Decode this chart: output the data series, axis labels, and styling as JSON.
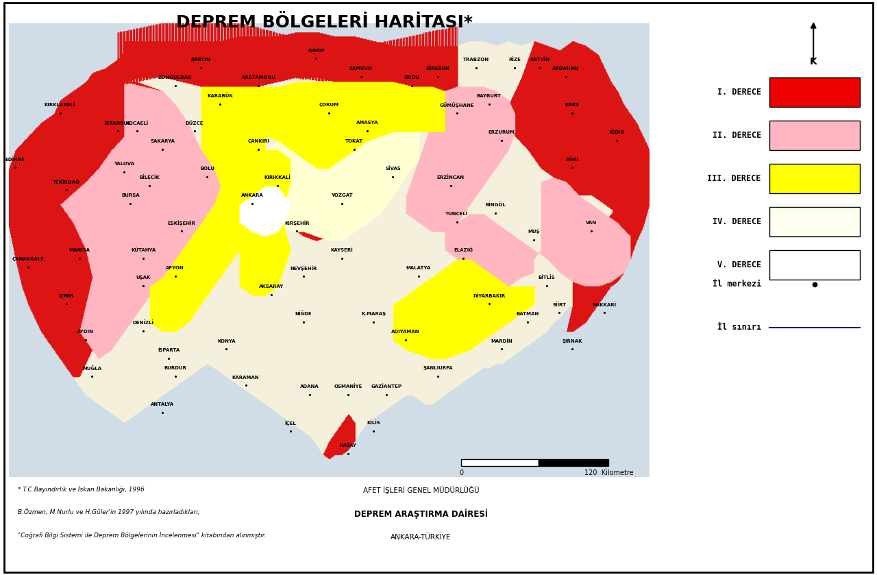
{
  "title": "DEPREM BÖLGELERİ HARİTASI*",
  "title_fontsize": 18,
  "bg_color": "#ffffff",
  "legend_colors": [
    "#ee0000",
    "#ffb6c1",
    "#ffff00",
    "#fffff0",
    "#ffffff"
  ],
  "legend_labels": [
    "I. DERECE",
    "II. DERECE",
    "III. DERECE",
    "IV. DERECE",
    "V. DERECE"
  ],
  "footnote1": "* T.C.Bayındırlık ve İskan Bakanlığı, 1996",
  "footnote2": "B.Özmen, M.Nurlu ve H.Güler'in 1997 yılında hazırladıkları,",
  "footnote3": "\"Coğrafi Bilgi Sistemi ile Deprem Bölgelerinin İncelenmesi\" kitabından alınmıştır.",
  "agency1": "AFET İŞLERİ GENEL MÜDÜRLÜĞÜ",
  "agency2": "DEPREM ARAŞTIRMA DAİRESİ",
  "agency3": "ANKARA-TÜRKİYE",
  "scale_label": "120  Kilometre",
  "north_text": "K",
  "fig_width": 12.8,
  "fig_height": 8.39,
  "sea_color": "#d0dce6",
  "map_border_color": "#000000"
}
